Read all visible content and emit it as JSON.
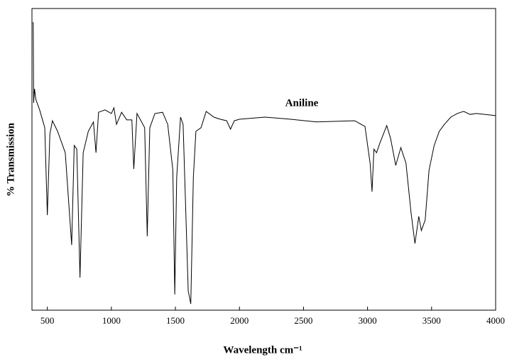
{
  "chart_data": {
    "type": "line",
    "annotation": "Aniline",
    "xlabel": "Wavelength cm⁻¹",
    "ylabel": "% Transmission",
    "x": [
      385,
      390,
      393,
      400,
      410,
      440,
      480,
      500,
      520,
      540,
      580,
      640,
      690,
      710,
      730,
      755,
      780,
      820,
      860,
      880,
      900,
      950,
      1000,
      1020,
      1040,
      1080,
      1120,
      1160,
      1175,
      1200,
      1260,
      1280,
      1300,
      1340,
      1400,
      1440,
      1480,
      1495,
      1510,
      1540,
      1560,
      1600,
      1620,
      1640,
      1660,
      1700,
      1740,
      1800,
      1850,
      1900,
      1930,
      1960,
      2000,
      2200,
      2400,
      2600,
      2900,
      2980,
      3020,
      3035,
      3050,
      3070,
      3100,
      3150,
      3180,
      3220,
      3260,
      3300,
      3340,
      3370,
      3400,
      3420,
      3450,
      3480,
      3520,
      3560,
      3600,
      3650,
      3700,
      3750,
      3800,
      3850,
      4000
    ],
    "series": [
      {
        "color": "#000000",
        "values": [
          95.3,
          95.3,
          68.7,
          73.4,
          69.9,
          66.4,
          60.5,
          31.5,
          58.4,
          62.8,
          59.3,
          52.2,
          21.6,
          54.6,
          53.4,
          10.8,
          52.2,
          59.3,
          62.4,
          52.2,
          65.6,
          66.4,
          65.2,
          67.1,
          61.6,
          65.6,
          63.1,
          63.1,
          46.8,
          65.2,
          60.5,
          24.5,
          60.5,
          65.2,
          65.6,
          61.6,
          46.4,
          5.2,
          44.0,
          64.0,
          61.6,
          6.4,
          2.1,
          44.0,
          59.3,
          60.5,
          65.9,
          64.0,
          63.3,
          62.8,
          60.0,
          62.8,
          63.3,
          64.0,
          63.3,
          62.4,
          62.8,
          60.9,
          48.7,
          39.3,
          53.4,
          52.2,
          55.8,
          61.2,
          56.9,
          48.0,
          53.9,
          48.7,
          32.2,
          22.1,
          31.1,
          26.4,
          29.9,
          46.4,
          54.6,
          59.3,
          61.6,
          64.0,
          65.2,
          65.9,
          64.9,
          65.2,
          64.5
        ]
      }
    ],
    "xlim": [
      380,
      4000
    ],
    "ylim": [
      0,
      100
    ],
    "xticks": [
      500,
      1000,
      1500,
      2000,
      2500,
      3000,
      3500,
      4000
    ]
  }
}
